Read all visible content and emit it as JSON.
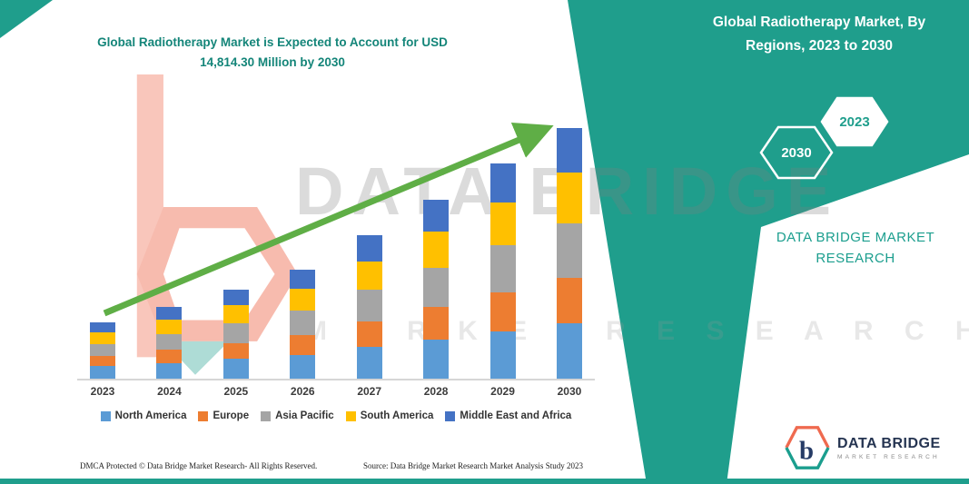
{
  "page": {
    "right_panel": {
      "title": "Global Radiotherapy Market, By Regions, 2023 to 2030",
      "hex_2030": "2030",
      "hex_2023": "2023",
      "brand_line1": "DATA BRIDGE MARKET",
      "brand_line2": "RESEARCH"
    },
    "watermark": {
      "line1": "DATA BRIDGE",
      "line2": "M A R K E T   R E S E A R C H"
    },
    "footer": {
      "dmca": "DMCA Protected © Data Bridge Market Research-  All Rights Reserved.",
      "source": "Source: Data Bridge Market Research  Market Analysis Study 2023"
    },
    "brand_logo": {
      "name": "DATA BRIDGE",
      "subtitle": "MARKET RESEARCH"
    },
    "colors": {
      "teal": "#1f9e8c",
      "title_teal": "#148579",
      "arrow_green": "#5fae46",
      "logo_orange": "#ef6a4f",
      "logo_navy": "#263b66"
    }
  },
  "chart_data": {
    "type": "bar",
    "stacked": true,
    "title": "Global Radiotherapy Market is Expected to Account for USD 14,814.30 Million by 2030",
    "categories": [
      "2023",
      "2024",
      "2025",
      "2026",
      "2027",
      "2028",
      "2029",
      "2030"
    ],
    "series": [
      {
        "name": "North America",
        "color": "#5B9BD5",
        "values": [
          726,
          930.6,
          1161.6,
          1419,
          1861.2,
          2327.6,
          2794,
          3259.1
        ]
      },
      {
        "name": "Europe",
        "color": "#ED7D31",
        "values": [
          594,
          761.4,
          950.4,
          1161,
          1522.8,
          1904.4,
          2286,
          2666.6
        ]
      },
      {
        "name": "Asia Pacific",
        "color": "#A5A5A5",
        "values": [
          726,
          930.6,
          1161.6,
          1419,
          1861.2,
          2327.6,
          2794,
          3259.1
        ]
      },
      {
        "name": "South America",
        "color": "#FFC000",
        "values": [
          660,
          846,
          1056,
          1290,
          1692,
          2116,
          2540,
          2962.9
        ]
      },
      {
        "name": "Middle East and Africa",
        "color": "#4472C4",
        "values": [
          594,
          761.4,
          950.4,
          1161,
          1522.8,
          1904.4,
          2286,
          2666.6
        ]
      }
    ],
    "totals": [
      3300,
      4230,
      5280,
      6450,
      8460,
      10580,
      12700,
      14814.3
    ],
    "unit": "USD Million",
    "ylim": [
      0,
      15000
    ],
    "y_axis_visible": false,
    "gridlines": false,
    "legend_position": "bottom",
    "annotations": [
      {
        "type": "trend-arrow",
        "direction": "up"
      }
    ]
  }
}
